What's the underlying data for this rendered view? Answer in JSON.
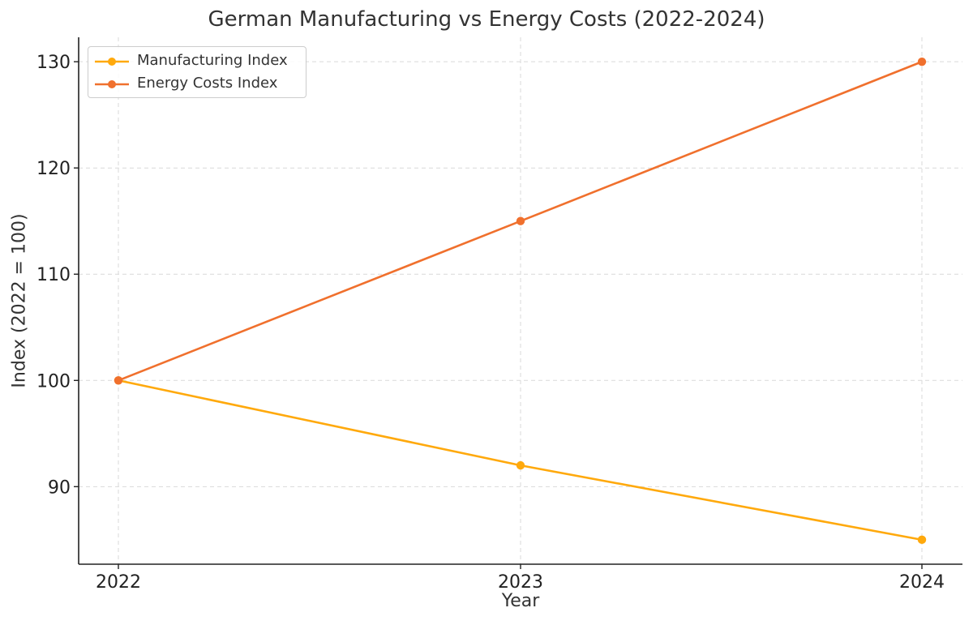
{
  "chart_data": {
    "type": "line",
    "title": "German Manufacturing vs Energy Costs (2022-2024)",
    "xlabel": "Year",
    "ylabel": "Index (2022 = 100)",
    "categories": [
      "2022",
      "2023",
      "2024"
    ],
    "ylim": [
      82.7,
      132.3
    ],
    "yticks": [
      90,
      100,
      110,
      120,
      130
    ],
    "grid": true,
    "legend_position": "top-left",
    "series": [
      {
        "name": "Manufacturing Index",
        "values": [
          100,
          92,
          85
        ],
        "color": "#FFA90C"
      },
      {
        "name": "Energy Costs Index",
        "values": [
          100,
          115,
          130
        ],
        "color": "#F0702D"
      }
    ]
  }
}
